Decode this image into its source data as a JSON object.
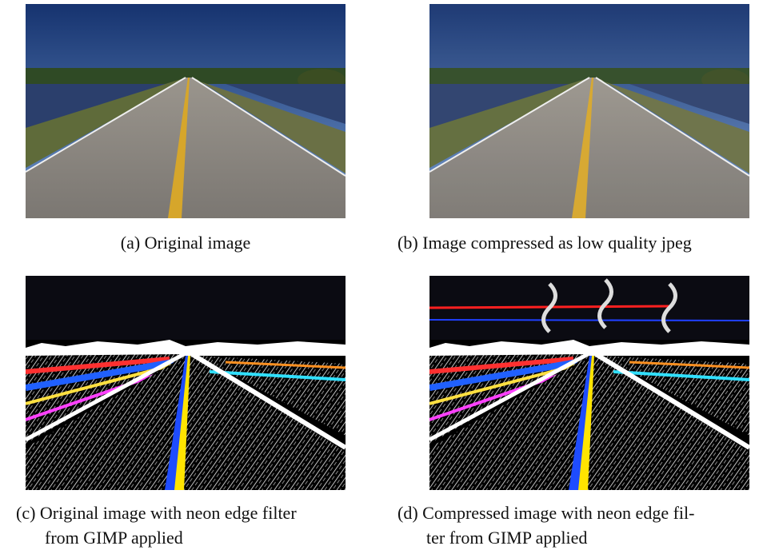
{
  "figure": {
    "panels": [
      {
        "caption_lines": [
          "(a) Original image"
        ]
      },
      {
        "caption_lines": [
          "(b) Image compressed as low quality jpeg"
        ]
      },
      {
        "caption_lines": [
          "(c) Original image with neon edge filter",
          "from GIMP applied"
        ]
      },
      {
        "caption_lines": [
          "(d) Compressed image with neon edge fil-",
          "ter from GIMP applied"
        ]
      }
    ]
  }
}
